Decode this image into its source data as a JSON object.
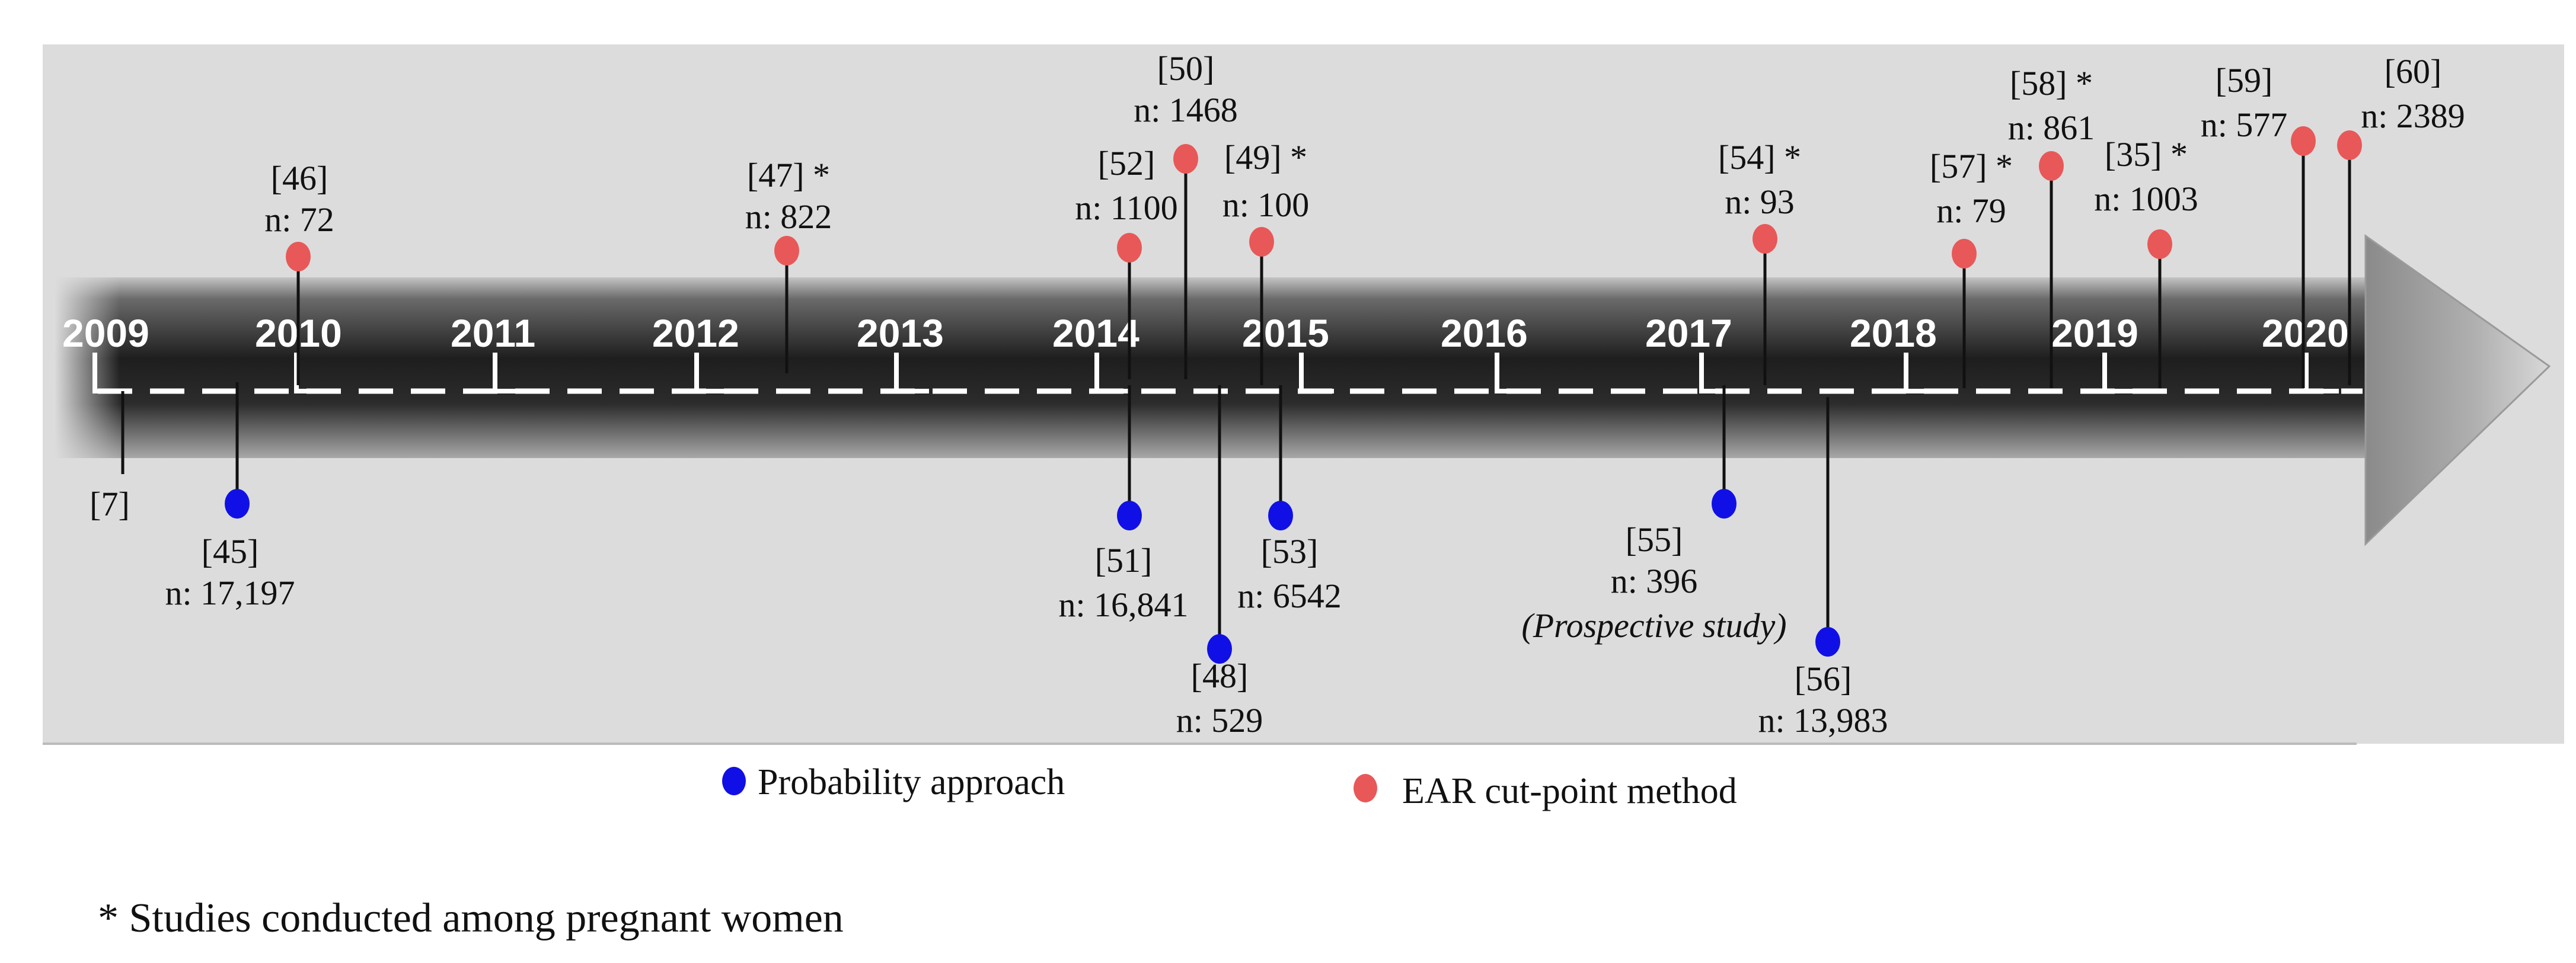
{
  "colors": {
    "probability": "#1010e6",
    "ear": "#e85858",
    "panel_bg": "#dcdcdc",
    "stem": "#111111"
  },
  "years": [
    "2009",
    "2010",
    "2011",
    "2012",
    "2013",
    "2014",
    "2015",
    "2016",
    "2017",
    "2018",
    "2019",
    "2020"
  ],
  "studies": [
    {
      "ref": "[7]",
      "n": "",
      "method": "none",
      "side": "below"
    },
    {
      "ref": "[45]",
      "n": "n: 17,197",
      "method": "probability",
      "side": "below"
    },
    {
      "ref": "[46]",
      "n": "n: 72",
      "method": "ear",
      "side": "above"
    },
    {
      "ref": "[47] *",
      "n": "n: 822",
      "method": "ear",
      "side": "above"
    },
    {
      "ref": "[52]",
      "n": "n: 1100",
      "method": "ear",
      "side": "above"
    },
    {
      "ref": "[50]",
      "n": "n: 1468",
      "method": "ear",
      "side": "above"
    },
    {
      "ref": "[49] *",
      "n": "n: 100",
      "method": "ear",
      "side": "above"
    },
    {
      "ref": "[51]",
      "n": "n: 16,841",
      "method": "probability",
      "side": "below"
    },
    {
      "ref": "[48]",
      "n": "n: 529",
      "method": "probability",
      "side": "below"
    },
    {
      "ref": "[53]",
      "n": "n: 6542",
      "method": "probability",
      "side": "below"
    },
    {
      "ref": "[54] *",
      "n": "n: 93",
      "method": "ear",
      "side": "above"
    },
    {
      "ref": "[55]",
      "n": "n: 396",
      "note": "(Prospective study)",
      "method": "probability",
      "side": "below"
    },
    {
      "ref": "[56]",
      "n": "n: 13,983",
      "method": "probability",
      "side": "below"
    },
    {
      "ref": "[57] *",
      "n": "n: 79",
      "method": "ear",
      "side": "above"
    },
    {
      "ref": "[58] *",
      "n": "n: 861",
      "method": "ear",
      "side": "above"
    },
    {
      "ref": "[35] *",
      "n": "n: 1003",
      "method": "ear",
      "side": "above"
    },
    {
      "ref": "[59]",
      "n": "n: 577",
      "method": "ear",
      "side": "above"
    },
    {
      "ref": "[60]",
      "n": "n: 2389",
      "method": "ear",
      "side": "above"
    }
  ],
  "legend": {
    "probability_label": "Probability approach",
    "ear_label": "EAR cut-point method"
  },
  "footnote": "* Studies conducted among pregnant women"
}
